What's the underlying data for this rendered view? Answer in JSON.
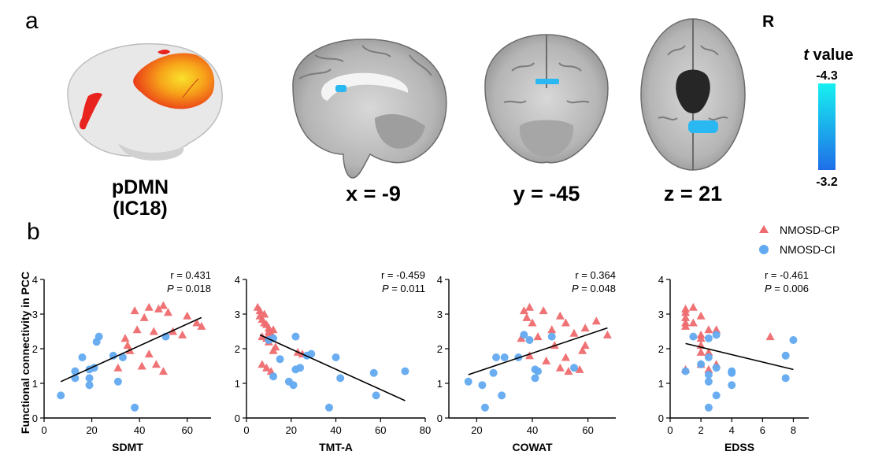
{
  "panel_a": {
    "label": "a",
    "brain_label_line1": "pDMN",
    "brain_label_line2": "(IC18)",
    "slices": [
      "x = -9",
      "y = -45",
      "z = 21"
    ],
    "orientation": "R",
    "colorbar": {
      "title_italic": "t",
      "title_rest": " value",
      "top": "-4.3",
      "bottom": "-3.2",
      "color_top": "#17f0f0",
      "color_bottom": "#1f6ee8"
    },
    "activation_color": "#29b8f2",
    "cortex_colors": [
      "#e8231d",
      "#f26a12",
      "#f7b51a"
    ]
  },
  "panel_b": {
    "label": "b",
    "ylabel": "Functional connectivity in PCC",
    "legend": [
      {
        "name": "NMOSD-CP",
        "marker": "triangle",
        "color": "#ee6a6e"
      },
      {
        "name": "NMOSD-CI",
        "marker": "circle",
        "color": "#62aaf0"
      }
    ]
  },
  "chart_data": [
    {
      "type": "scatter",
      "xlabel": "SDMT",
      "ylabel": "Functional connectivity in PCC",
      "xlim": [
        0,
        70
      ],
      "ylim": [
        0,
        4
      ],
      "xticks": [
        0,
        20,
        40,
        60
      ],
      "yticks": [
        0,
        1,
        2,
        3,
        4
      ],
      "stat_r": "r = 0.431",
      "stat_p_label": "P",
      "stat_p_value": " = 0.018",
      "fit": [
        [
          7,
          1.05
        ],
        [
          66,
          2.9
        ]
      ],
      "series": [
        {
          "name": "NMOSD-CP",
          "points": [
            [
              38,
              3.1
            ],
            [
              42,
              2.9
            ],
            [
              44,
              3.2
            ],
            [
              48,
              3.15
            ],
            [
              50,
              3.25
            ],
            [
              52,
              3.05
            ],
            [
              60,
              2.95
            ],
            [
              64,
              2.75
            ],
            [
              66,
              2.65
            ],
            [
              39,
              2.55
            ],
            [
              46,
              2.5
            ],
            [
              54,
              2.5
            ],
            [
              58,
              2.4
            ],
            [
              34,
              2.3
            ],
            [
              35,
              2.1
            ],
            [
              36,
              1.95
            ],
            [
              44,
              1.85
            ],
            [
              47,
              1.55
            ],
            [
              50,
              1.35
            ],
            [
              41,
              1.5
            ],
            [
              31,
              1.45
            ]
          ]
        },
        {
          "name": "NMOSD-CI",
          "points": [
            [
              7,
              0.65
            ],
            [
              13,
              1.35
            ],
            [
              13,
              1.15
            ],
            [
              16,
              1.75
            ],
            [
              19,
              1.4
            ],
            [
              19,
              1.15
            ],
            [
              19,
              0.95
            ],
            [
              21,
              1.45
            ],
            [
              22,
              2.2
            ],
            [
              23,
              2.35
            ],
            [
              29,
              1.8
            ],
            [
              31,
              1.05
            ],
            [
              33,
              1.75
            ],
            [
              38,
              0.3
            ],
            [
              51,
              2.35
            ]
          ]
        }
      ]
    },
    {
      "type": "scatter",
      "xlabel": "TMT-A",
      "ylabel": "",
      "xlim": [
        0,
        80
      ],
      "ylim": [
        0,
        4
      ],
      "xticks": [
        0,
        20,
        40,
        60,
        80
      ],
      "yticks": [
        0,
        1,
        2,
        3,
        4
      ],
      "stat_r": "r = -0.459",
      "stat_p_label": "P",
      "stat_p_value": " = 0.011",
      "fit": [
        [
          6,
          2.4
        ],
        [
          71,
          0.5
        ]
      ],
      "series": [
        {
          "name": "NMOSD-CP",
          "points": [
            [
              5,
              3.2
            ],
            [
              6,
              3.1
            ],
            [
              6,
              2.95
            ],
            [
              7,
              2.85
            ],
            [
              8,
              3.0
            ],
            [
              8,
              2.75
            ],
            [
              9,
              2.7
            ],
            [
              10,
              2.6
            ],
            [
              10,
              2.5
            ],
            [
              11,
              2.45
            ],
            [
              12,
              2.55
            ],
            [
              7,
              2.35
            ],
            [
              9,
              2.3
            ],
            [
              10,
              2.2
            ],
            [
              13,
              2.05
            ],
            [
              12,
              1.95
            ],
            [
              23,
              1.9
            ],
            [
              25,
              1.85
            ],
            [
              7,
              1.55
            ],
            [
              9,
              1.45
            ],
            [
              11,
              1.35
            ]
          ]
        },
        {
          "name": "NMOSD-CI",
          "points": [
            [
              10,
              2.25
            ],
            [
              12,
              2.3
            ],
            [
              15,
              1.7
            ],
            [
              22,
              1.4
            ],
            [
              24,
              1.45
            ],
            [
              22,
              2.35
            ],
            [
              27,
              1.8
            ],
            [
              29,
              1.85
            ],
            [
              40,
              1.75
            ],
            [
              12,
              1.2
            ],
            [
              19,
              1.05
            ],
            [
              21,
              0.95
            ],
            [
              42,
              1.15
            ],
            [
              57,
              1.3
            ],
            [
              71,
              1.35
            ],
            [
              37,
              0.3
            ],
            [
              58,
              0.65
            ]
          ]
        }
      ]
    },
    {
      "type": "scatter",
      "xlabel": "COWAT",
      "ylabel": "",
      "xlim": [
        10,
        70
      ],
      "ylim": [
        0,
        4
      ],
      "xticks": [
        20,
        40,
        60
      ],
      "yticks": [
        0,
        1,
        2,
        3,
        4
      ],
      "stat_r": "r = 0.364",
      "stat_p_label": "P",
      "stat_p_value": " = 0.048",
      "fit": [
        [
          17,
          1.25
        ],
        [
          67,
          2.6
        ]
      ],
      "series": [
        {
          "name": "NMOSD-CP",
          "points": [
            [
              37,
              3.1
            ],
            [
              39,
              3.2
            ],
            [
              44,
              3.1
            ],
            [
              38,
              2.9
            ],
            [
              40,
              2.75
            ],
            [
              50,
              2.95
            ],
            [
              52,
              2.75
            ],
            [
              59,
              2.6
            ],
            [
              63,
              2.8
            ],
            [
              47,
              2.55
            ],
            [
              55,
              2.45
            ],
            [
              67,
              2.4
            ],
            [
              36,
              2.3
            ],
            [
              42,
              2.35
            ],
            [
              48,
              2.1
            ],
            [
              59,
              2.1
            ],
            [
              58,
              1.95
            ],
            [
              39,
              1.8
            ],
            [
              45,
              1.65
            ],
            [
              52,
              1.75
            ],
            [
              50,
              1.45
            ],
            [
              57,
              1.4
            ],
            [
              53,
              1.35
            ]
          ]
        },
        {
          "name": "NMOSD-CI",
          "points": [
            [
              17,
              1.05
            ],
            [
              22,
              0.95
            ],
            [
              26,
              1.3
            ],
            [
              27,
              1.75
            ],
            [
              30,
              1.75
            ],
            [
              35,
              1.75
            ],
            [
              37,
              2.4
            ],
            [
              39,
              2.25
            ],
            [
              41,
              1.4
            ],
            [
              42,
              1.35
            ],
            [
              41,
              1.15
            ],
            [
              47,
              2.35
            ],
            [
              55,
              1.45
            ],
            [
              29,
              0.65
            ],
            [
              23,
              0.3
            ]
          ]
        }
      ]
    },
    {
      "type": "scatter",
      "xlabel": "EDSS",
      "ylabel": "",
      "xlim": [
        0,
        9
      ],
      "ylim": [
        0,
        4
      ],
      "xticks": [
        0,
        2,
        4,
        6,
        8
      ],
      "yticks": [
        0,
        1,
        2,
        3,
        4
      ],
      "stat_r": "r = -0.461",
      "stat_p_label": "P",
      "stat_p_value": " = 0.006",
      "fit": [
        [
          1,
          2.15
        ],
        [
          8,
          1.4
        ]
      ],
      "series": [
        {
          "name": "NMOSD-CP",
          "points": [
            [
              1,
              3.15
            ],
            [
              1,
              3.05
            ],
            [
              1,
              2.9
            ],
            [
              1,
              2.75
            ],
            [
              1,
              2.65
            ],
            [
              1.5,
              3.2
            ],
            [
              1.5,
              2.75
            ],
            [
              2,
              2.95
            ],
            [
              2,
              2.4
            ],
            [
              2,
              2.3
            ],
            [
              2.5,
              2.55
            ],
            [
              3,
              2.55
            ],
            [
              2,
              2.1
            ],
            [
              2,
              1.9
            ],
            [
              2.5,
              1.9
            ],
            [
              2,
              1.55
            ],
            [
              3,
              1.55
            ],
            [
              2.5,
              1.4
            ],
            [
              1,
              1.4
            ],
            [
              6.5,
              2.35
            ]
          ]
        },
        {
          "name": "NMOSD-CI",
          "points": [
            [
              1,
              1.35
            ],
            [
              1.5,
              2.35
            ],
            [
              2.5,
              2.3
            ],
            [
              3,
              2.4
            ],
            [
              2.5,
              1.75
            ],
            [
              2,
              1.55
            ],
            [
              2.5,
              1.25
            ],
            [
              3,
              1.45
            ],
            [
              2.5,
              1.05
            ],
            [
              3,
              0.65
            ],
            [
              4,
              1.35
            ],
            [
              4,
              1.3
            ],
            [
              4,
              0.95
            ],
            [
              2.5,
              0.3
            ],
            [
              7.5,
              1.8
            ],
            [
              7.5,
              1.15
            ],
            [
              8,
              2.25
            ]
          ]
        }
      ]
    }
  ]
}
